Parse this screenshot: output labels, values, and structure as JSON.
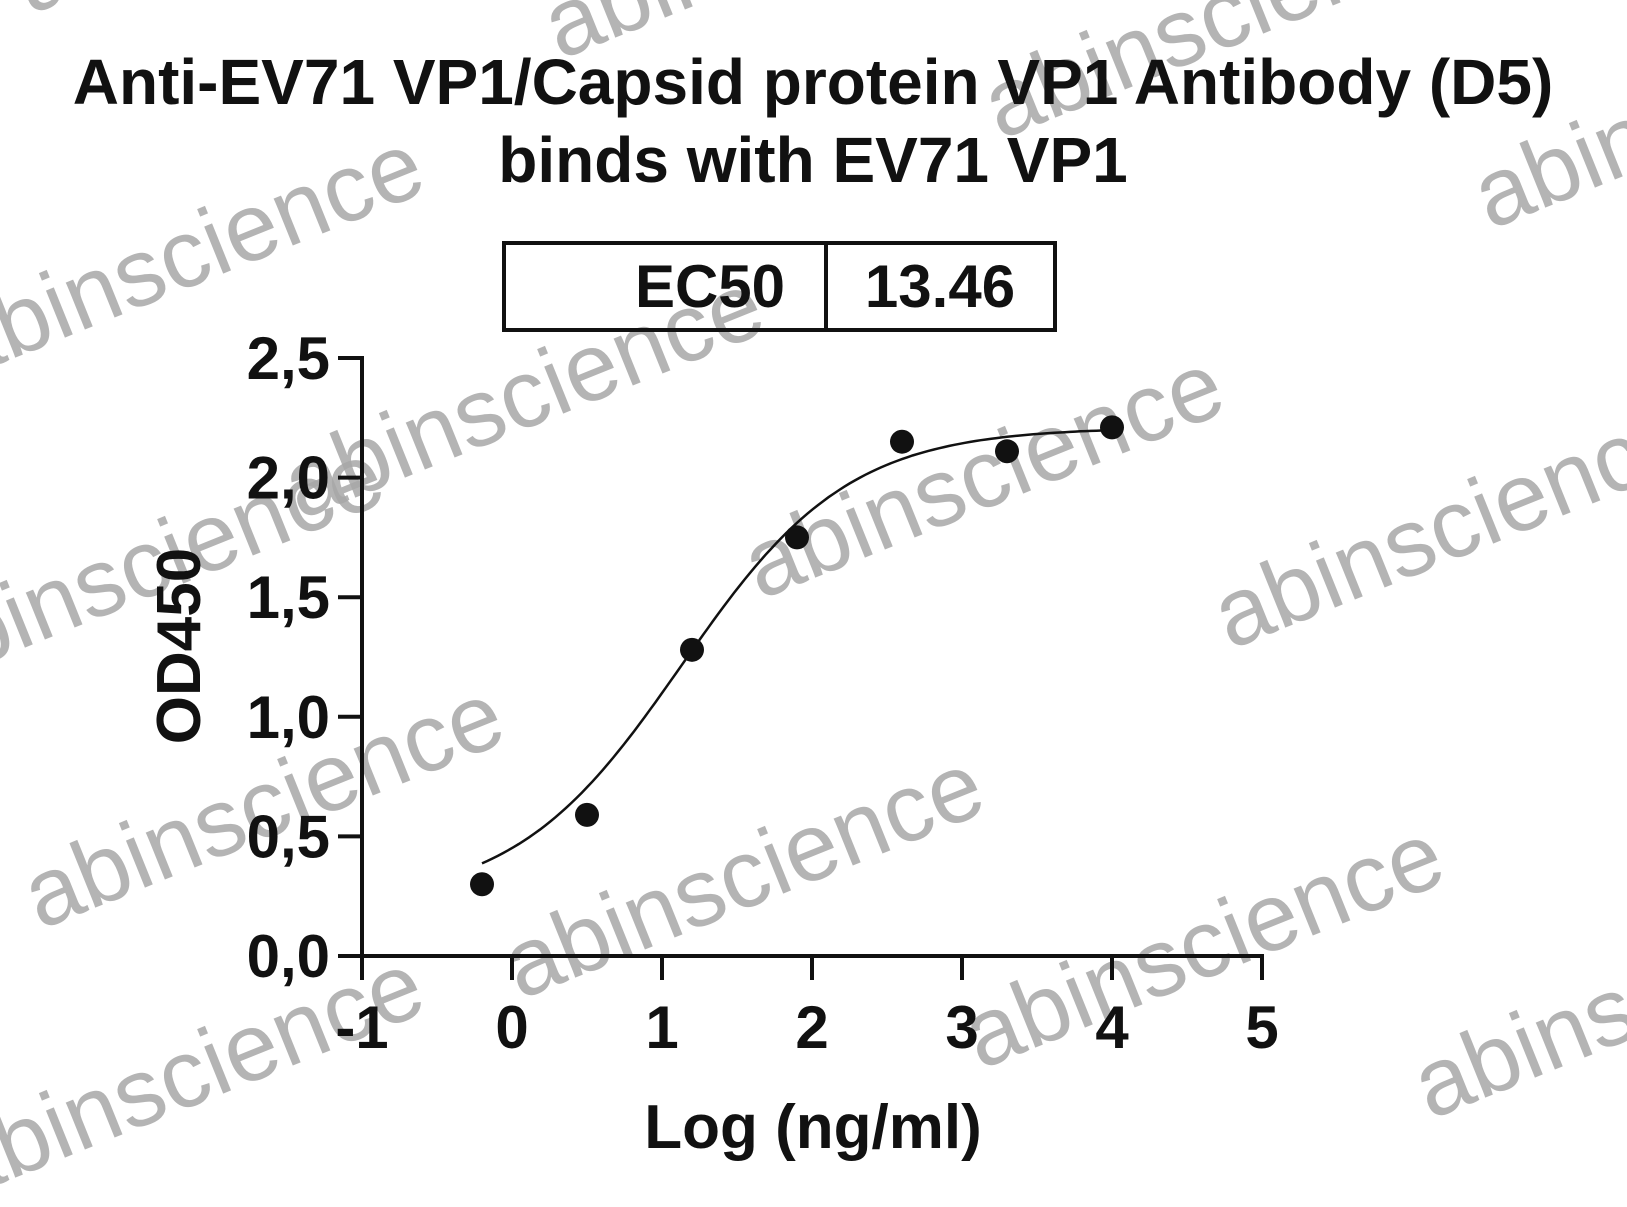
{
  "chart_data": {
    "type": "scatter",
    "title_line1": "Anti-EV71 VP1/Capsid protein VP1 Antibody (D5)",
    "title_line2": "binds with EV71 VP1",
    "xlabel": "Log (ng/ml)",
    "ylabel": "OD450",
    "xlim": [
      -1,
      5
    ],
    "ylim": [
      0,
      2.5
    ],
    "x_ticks": [
      -1,
      0,
      1,
      2,
      3,
      4,
      5
    ],
    "x_tick_labels": [
      "-1",
      "0",
      "1",
      "2",
      "3",
      "4",
      "5"
    ],
    "y_ticks": [
      0,
      0.5,
      1.0,
      1.5,
      2.0,
      2.5
    ],
    "y_tick_labels": [
      "0,0",
      "0,5",
      "1,0",
      "1,5",
      "2,0",
      "2,5"
    ],
    "grid": false,
    "ec50_label": "EC50",
    "ec50_value": "13.46",
    "series": [
      {
        "x": [
          -0.2,
          0.5,
          1.2,
          1.9,
          2.6,
          3.3,
          4.0
        ],
        "y": [
          0.3,
          0.59,
          1.28,
          1.75,
          2.15,
          2.11,
          2.21
        ]
      }
    ],
    "fit": {
      "bottom": 0.22,
      "top": 2.21,
      "log_ec50": 1.13,
      "hill": 0.78,
      "x_range": [
        -0.2,
        4.0
      ]
    },
    "watermark": "abinscience",
    "colors": {
      "ink": "#111111",
      "watermark": "#a8a8a8"
    }
  }
}
